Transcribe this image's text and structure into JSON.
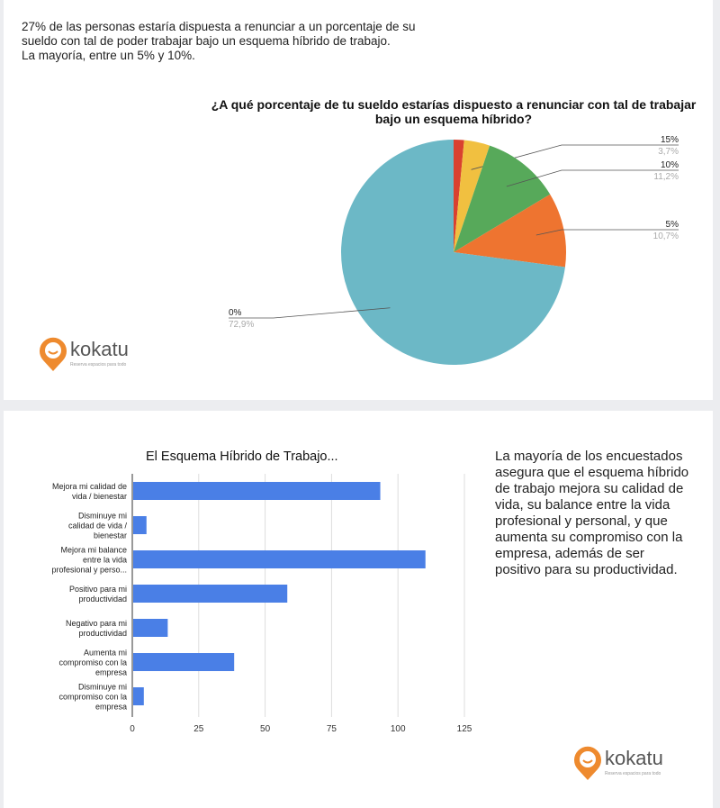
{
  "intro_text": [
    "27% de las personas estaría dispuesta a renunciar a un porcentaje de su",
    "sueldo con tal de poder trabajar bajo un esquema híbrido de trabajo.",
    "La mayoría, entre un 5% y 10%."
  ],
  "logo": {
    "name": "kokatu",
    "tagline": "Reserva espacios para todo"
  },
  "side_text": "La mayoría de los encuestados asegura que el esquema híbrido de trabajo mejora su calidad de vida, su balance entre la vida profesional y personal, y que aumenta su compromiso con la empresa, además de ser positivo para su productividad.",
  "chart_data": [
    {
      "type": "pie",
      "title": "¿A qué porcentaje de tu sueldo estarías dispuesto a renunciar con tal de trabajar bajo un esquema híbrido?",
      "slices": [
        {
          "label": "",
          "value": 1.5,
          "color": "#d9412f",
          "pct": ""
        },
        {
          "label": "15%",
          "value": 3.7,
          "color": "#f1c040",
          "pct": "3,7%"
        },
        {
          "label": "10%",
          "value": 11.2,
          "color": "#57a95a",
          "pct": "11,2%"
        },
        {
          "label": "5%",
          "value": 10.7,
          "color": "#ee7430",
          "pct": "10,7%"
        },
        {
          "label": "0%",
          "value": 72.9,
          "color": "#6cb8c6",
          "pct": "72,9%"
        }
      ]
    },
    {
      "type": "bar",
      "orientation": "horizontal",
      "title": "El Esquema Híbrido de Trabajo...",
      "categories": [
        [
          "Mejora mi calidad de",
          "vida / bienestar"
        ],
        [
          "Disminuye mi",
          "calidad de vida /",
          "bienestar"
        ],
        [
          "Mejora mi balance",
          "entre la vida",
          "profesional y perso..."
        ],
        [
          "Positivo para mi",
          "productividad"
        ],
        [
          "Negativo para mi",
          "productividad"
        ],
        [
          "Aumenta mi",
          "compromiso con la",
          "empresa"
        ],
        [
          "Disminuye mi",
          "compromiso con la",
          "empresa"
        ]
      ],
      "values": [
        93,
        5,
        110,
        58,
        13,
        38,
        4
      ],
      "xlim": [
        0,
        125
      ],
      "xticks": [
        0,
        25,
        50,
        75,
        100,
        125
      ],
      "grid": true,
      "color": "#4a7fe6"
    }
  ]
}
